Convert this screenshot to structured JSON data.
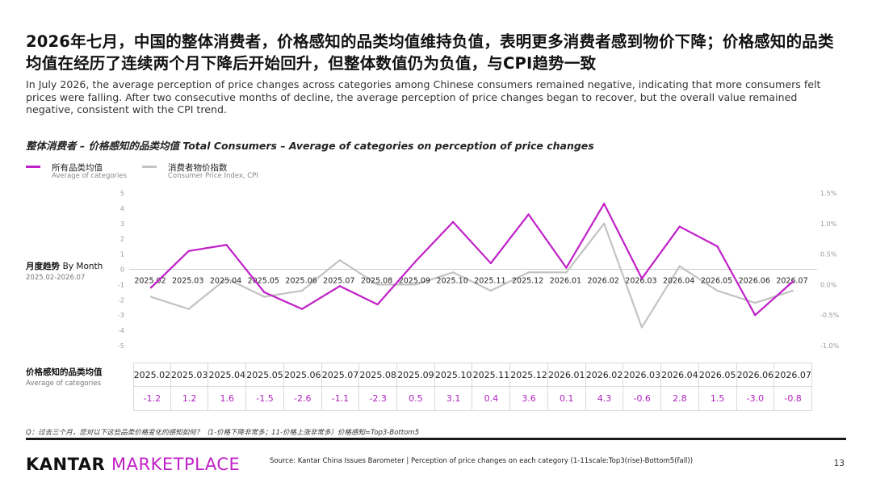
{
  "headline": "2026年七月，中国的整体消费者，价格感知的品类均值维持负值，表明更多消费者感到物价下降；价格感知的品类均值在经历了连续两个月下降后开始回升，但整体数值仍为负值，与CPI趋势一致",
  "subtext": "In July 2026, the average perception of price changes across categories among Chinese consumers remained negative, indicating that more consumers felt prices were falling. After two consecutive months of decline, the average perception of price changes began to recover, but the overall value remained negative, consistent with the CPI trend.",
  "chart_title": "整体消费者 – 价格感知的品类均值 Total Consumers – Average of categories on perception of price changes",
  "legend": {
    "avg_cn": "所有品类均值",
    "avg_en": "Average of categories",
    "cpi_cn": "消费者物价指数",
    "cpi_en": "Consumer Price Index, CPI"
  },
  "side_labels": {
    "trend_cn": "月度趋势",
    "trend_en": "By Month",
    "trend_range": "2025.02-2026.07",
    "table_cn": "价格感知的品类均值",
    "table_en": "Average of categories"
  },
  "colors": {
    "avg_line": "#c020c8",
    "cpi_line": "#c3c3c3",
    "table_value": "#b01fbf"
  },
  "chart_data": {
    "type": "line",
    "categories": [
      "2025.02",
      "2025.03",
      "2025.04",
      "2025.05",
      "2025.06",
      "2025.07",
      "2025.08",
      "2025.09",
      "2025.10",
      "2025.11",
      "2025.12",
      "2026.01",
      "2026.02",
      "2026.03",
      "2026.04",
      "2026.05",
      "2026.06",
      "2026.07"
    ],
    "series": [
      {
        "name": "所有品类均值",
        "axis": "left",
        "values": [
          -1.2,
          1.2,
          1.6,
          -1.5,
          -2.6,
          -1.1,
          -2.3,
          0.5,
          3.1,
          0.4,
          3.6,
          0.1,
          4.3,
          -0.6,
          2.8,
          1.5,
          -3.0,
          -0.8
        ]
      },
      {
        "name": "消费者物价指数",
        "axis": "right",
        "values": [
          -0.2,
          -0.4,
          0.1,
          -0.2,
          -0.1,
          0.4,
          0.0,
          0.0,
          0.2,
          -0.1,
          0.2,
          0.2,
          1.0,
          -0.7,
          0.3,
          -0.1,
          -0.3,
          -0.1
        ]
      }
    ],
    "left_axis": {
      "ylim": [
        -5,
        5
      ],
      "ticks": [
        "5",
        "4",
        "3",
        "2",
        "1",
        "0",
        "-1",
        "-2",
        "-3",
        "-4",
        "-5"
      ]
    },
    "right_axis": {
      "ylim": [
        -1.0,
        1.5
      ],
      "ticks": [
        "1.5%",
        "1.0%",
        "0.5%",
        "0.0%",
        "-0.5%",
        "-1.0%"
      ]
    },
    "table_values": [
      "-1.2",
      "1.2",
      "1.6",
      "-1.5",
      "-2.6",
      "-1.1",
      "-2.3",
      "0.5",
      "3.1",
      "0.4",
      "3.6",
      "0.1",
      "4.3",
      "-0.6",
      "2.8",
      "1.5",
      "-3.0",
      "-0.8"
    ]
  },
  "footer": {
    "question": "Q：过去三个月，您对以下这些品类价格变化的感知如何？（1-价格下降非常多；11-价格上涨非常多）价格感知=Top3-Bottom5",
    "logo_kantar": "KANTAR",
    "logo_marketplace": "MARKETPLACE",
    "source": "Source: Kantar China Issues Barometer | Perception of price changes on each category (1-11scale:Top3(rise)-Bottom5(fall))",
    "page_number": "13"
  }
}
